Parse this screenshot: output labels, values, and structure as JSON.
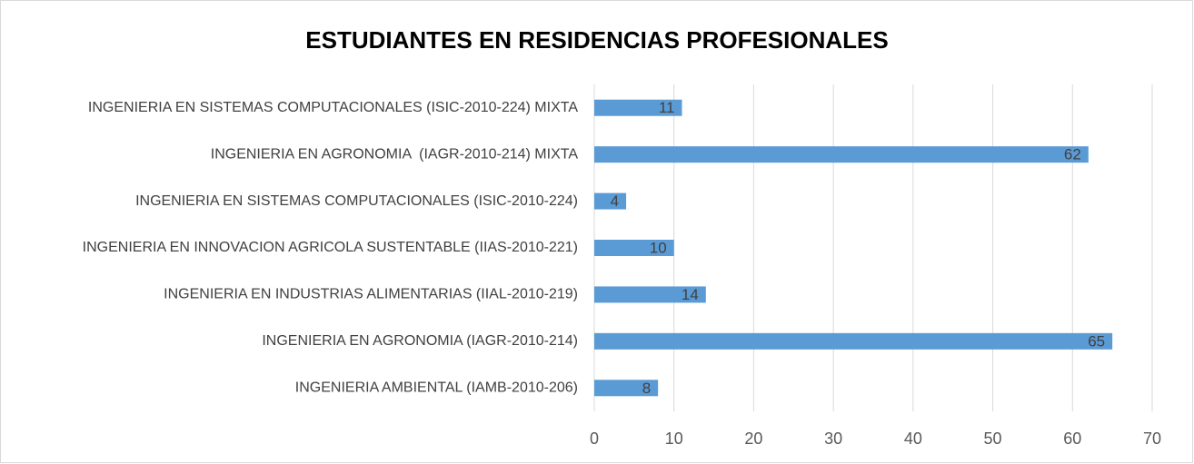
{
  "chart_data": {
    "type": "bar",
    "orientation": "horizontal",
    "title": "ESTUDIANTES EN RESIDENCIAS PROFESIONALES",
    "categories": [
      "INGENIERIA EN SISTEMAS COMPUTACIONALES (ISIC-2010-224) MIXTA",
      "INGENIERIA EN AGRONOMIA  (IAGR-2010-214) MIXTA",
      "INGENIERIA EN SISTEMAS COMPUTACIONALES (ISIC-2010-224)",
      "INGENIERIA EN INNOVACION AGRICOLA SUSTENTABLE (IIAS-2010-221)",
      "INGENIERIA EN INDUSTRIAS ALIMENTARIAS (IIAL-2010-219)",
      "INGENIERIA EN AGRONOMIA (IAGR-2010-214)",
      "INGENIERIA AMBIENTAL (IAMB-2010-206)"
    ],
    "values": [
      11,
      62,
      4,
      10,
      14,
      65,
      8
    ],
    "color": "#5b9bd5",
    "xlim": [
      0,
      70
    ],
    "xticks": [
      0,
      10,
      20,
      30,
      40,
      50,
      60,
      70
    ],
    "grid": true
  }
}
